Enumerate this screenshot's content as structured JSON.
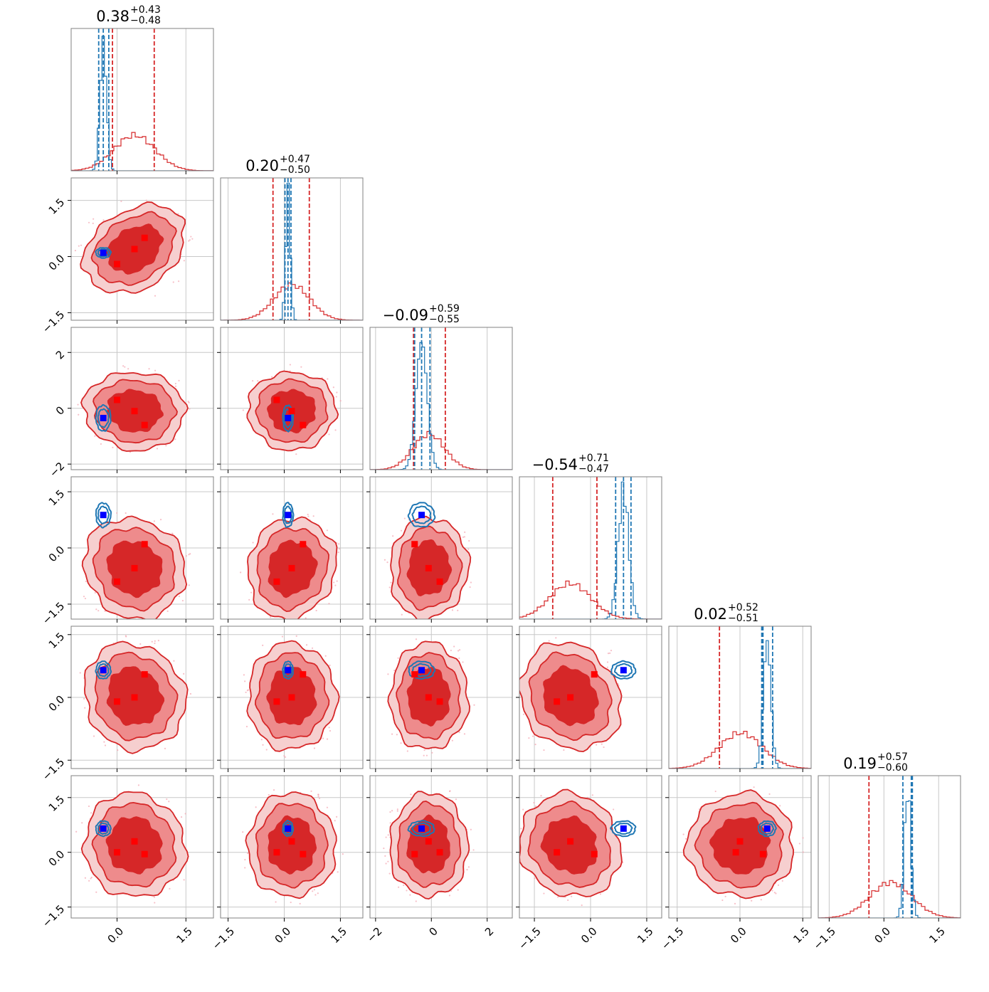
{
  "figure": {
    "colors": {
      "red": "#d62728",
      "red_mid": "#ee8b8c",
      "red_light": "#f6cfcf",
      "blue": "#1f77b4",
      "marker_red": "#ff0000",
      "marker_blue": "#0000ff",
      "grid": "#c8c8c8",
      "frame": "#808080"
    }
  },
  "chart_data": {
    "type": "corner",
    "title": "",
    "ndim": 6,
    "grid": true,
    "params": [
      {
        "title_value": "0.38",
        "title_plus": "+0.43",
        "title_minus": "−0.48",
        "range": [
          -1.0,
          2.1
        ],
        "ticks": [
          0.0,
          1.5
        ],
        "tick_labels": [
          "0.0",
          "1.5"
        ],
        "red_center": 0.38,
        "red_sd": 0.45,
        "red_q": [
          -0.1,
          0.81
        ],
        "blue_center": -0.3,
        "blue_sd": 0.07,
        "blue_q": [
          -0.4,
          -0.18
        ],
        "blue_mid": -0.3,
        "red_points": [
          0.38,
          0.6,
          0.0
        ]
      },
      {
        "title_value": "0.20",
        "title_plus": "+0.47",
        "title_minus": "−0.50",
        "range": [
          -1.7,
          2.1
        ],
        "ticks": [
          -1.5,
          0.0,
          1.5
        ],
        "tick_labels": [
          "−1.5",
          "0.0",
          "1.5"
        ],
        "red_center": 0.2,
        "red_sd": 0.48,
        "red_q": [
          -0.3,
          0.67
        ],
        "blue_center": 0.1,
        "blue_sd": 0.06,
        "blue_q": [
          0.02,
          0.18
        ],
        "blue_mid": 0.1,
        "red_points": [
          0.2,
          0.5,
          -0.2
        ]
      },
      {
        "title_value": "−0.09",
        "title_plus": "+0.59",
        "title_minus": "−0.55",
        "range": [
          -2.2,
          2.9
        ],
        "ticks": [
          -2,
          0,
          2
        ],
        "tick_labels": [
          "−2",
          "0",
          "2"
        ],
        "red_center": -0.09,
        "red_sd": 0.57,
        "red_q": [
          -0.64,
          0.5
        ],
        "blue_center": -0.35,
        "blue_sd": 0.2,
        "blue_q": [
          -0.6,
          -0.05
        ],
        "blue_mid": -0.35,
        "red_points": [
          -0.1,
          -0.6,
          0.3
        ]
      },
      {
        "title_value": "−0.54",
        "title_plus": "+0.71",
        "title_minus": "−0.47",
        "range": [
          -1.9,
          1.9
        ],
        "ticks": [
          -1.5,
          0.0,
          1.5
        ],
        "tick_labels": [
          "−1.5",
          "0.0",
          "1.5"
        ],
        "red_center": -0.54,
        "red_sd": 0.55,
        "red_q": [
          -1.01,
          0.17
        ],
        "blue_center": 0.88,
        "blue_sd": 0.14,
        "blue_q": [
          0.67,
          1.08
        ],
        "blue_mid": 0.88,
        "red_points": [
          -0.54,
          0.1,
          -0.9
        ]
      },
      {
        "title_value": "0.02",
        "title_plus": "+0.52",
        "title_minus": "−0.51",
        "range": [
          -1.7,
          1.7
        ],
        "ticks": [
          -1.5,
          0.0,
          1.5
        ],
        "tick_labels": [
          "−1.5",
          "0.0",
          "1.5"
        ],
        "red_center": 0.02,
        "red_sd": 0.52,
        "red_q": [
          -0.49,
          0.54
        ],
        "blue_center": 0.65,
        "blue_sd": 0.09,
        "blue_q": [
          0.52,
          0.78
        ],
        "blue_mid": 0.55,
        "red_points": [
          0.0,
          0.55,
          -0.1
        ]
      },
      {
        "title_value": "0.19",
        "title_plus": "+0.57",
        "title_minus": "−0.60",
        "range": [
          -1.8,
          2.1
        ],
        "ticks": [
          -1.5,
          0.0,
          1.5
        ],
        "tick_labels": [
          "−1.5",
          "0.0",
          "1.5"
        ],
        "red_center": 0.19,
        "red_sd": 0.58,
        "red_q": [
          -0.41,
          0.76
        ],
        "blue_center": 0.65,
        "blue_sd": 0.09,
        "blue_q": [
          0.52,
          0.78
        ],
        "blue_mid": 0.75,
        "red_points": [
          0.3,
          -0.05,
          0.0
        ]
      }
    ],
    "red_corr": [
      [
        1,
        0.3,
        -0.05,
        -0.1,
        -0.1,
        -0.05
      ],
      [
        0.3,
        1,
        0.0,
        0.1,
        0.0,
        0.0
      ],
      [
        -0.05,
        0.0,
        1,
        0.05,
        0.0,
        0.0
      ],
      [
        -0.1,
        0.1,
        0.05,
        1,
        -0.15,
        -0.1
      ],
      [
        -0.1,
        0.0,
        0.0,
        -0.15,
        1,
        0.0
      ],
      [
        -0.05,
        0.0,
        0.0,
        -0.1,
        0.0,
        1
      ]
    ]
  }
}
